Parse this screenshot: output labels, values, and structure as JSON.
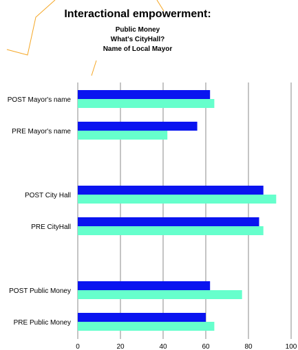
{
  "chart_data": {
    "type": "bar",
    "orientation": "horizontal",
    "title": "Interactional empowerment:",
    "subtitle": [
      "Public Money",
      "What's CityHall?",
      "Name of Local Mayor"
    ],
    "categories": [
      "POST Mayor's name",
      "PRE Mayor's name",
      "POST City Hall",
      "PRE CityHall",
      "POST Public Money",
      "PRE Public Money"
    ],
    "series": [
      {
        "color": "#0a14f0",
        "values": [
          62,
          56,
          87,
          85,
          62,
          60
        ]
      },
      {
        "color": "#66ffcc",
        "values": [
          64,
          42,
          93,
          87,
          77,
          64
        ]
      }
    ],
    "xlim": [
      0,
      100
    ],
    "xticks": [
      "0",
      "20",
      "40",
      "60",
      "80",
      "100"
    ],
    "grid": "vertical",
    "legend": "none",
    "decoration_color": "#f5a623"
  }
}
